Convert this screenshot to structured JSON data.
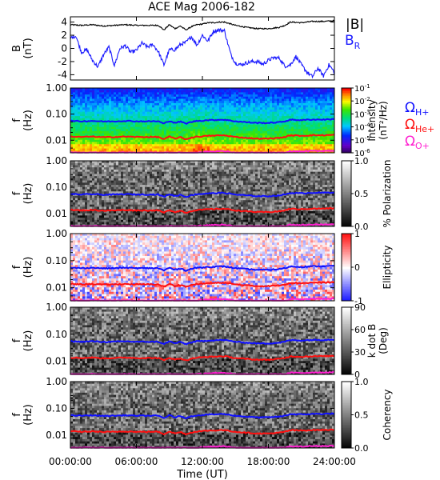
{
  "title": "ACE Mag 2006-182",
  "colors": {
    "total_field": "#000000",
    "radial_field": "#1a1aff",
    "h_gyro": "#1010ff",
    "he_gyro": "#ff1010",
    "o_gyro": "#ff20d0"
  },
  "chart_data": [
    {
      "type": "line",
      "ylabel": "B\n(nT)",
      "ylim": [
        -4.8,
        4.8
      ],
      "yticks": [
        4,
        2,
        0,
        -2,
        -4
      ],
      "ytick_labels": [
        "4",
        "2",
        "0",
        "-2",
        "-4"
      ],
      "x_range_hours": [
        0,
        24
      ],
      "legend": [
        "|B|",
        "B_R"
      ],
      "legend_display": {
        "total": "|B|",
        "radial_main": "B",
        "radial_sub": "R"
      },
      "legend_placement": "right",
      "series": [
        {
          "name": "|B|",
          "x": [
            0,
            1,
            2,
            3,
            4,
            5,
            6,
            7,
            8,
            8.5,
            9,
            9.5,
            10,
            10.5,
            11,
            11.5,
            12,
            12.5,
            13,
            13.5,
            14,
            15,
            16,
            17,
            18,
            19,
            19.5,
            20,
            21,
            22,
            23,
            24
          ],
          "y": [
            3.6,
            3.5,
            3.6,
            3.4,
            3.5,
            3.6,
            3.5,
            3.5,
            3.5,
            2.8,
            3.6,
            3.0,
            3.4,
            2.8,
            3.3,
            3.6,
            3.7,
            3.9,
            3.9,
            4.0,
            4.0,
            3.5,
            3.2,
            3.0,
            3.0,
            3.2,
            3.5,
            4.0,
            3.9,
            4.1,
            4.1,
            4.2
          ]
        },
        {
          "name": "B_R",
          "x": [
            0,
            0.5,
            1,
            1.5,
            2,
            2.5,
            3,
            3.5,
            4,
            4.5,
            5,
            5.5,
            6,
            6.5,
            7,
            7.5,
            8,
            8.5,
            9,
            9.5,
            10,
            10.5,
            11,
            11.5,
            12,
            12.5,
            13,
            13.5,
            14,
            14.3,
            14.6,
            15,
            15.5,
            16,
            16.5,
            17,
            17.5,
            18,
            18.5,
            19,
            19.5,
            20,
            20.5,
            21,
            21.5,
            22,
            22.5,
            23,
            23.5,
            24
          ],
          "y": [
            1.6,
            1.9,
            -0.6,
            -0.2,
            -1.8,
            -2.8,
            -1.0,
            0.2,
            -2.6,
            0.0,
            0.4,
            -0.6,
            -0.3,
            0.8,
            0.2,
            0.6,
            -0.5,
            -2.5,
            -0.2,
            -0.2,
            0.6,
            0.9,
            1.8,
            0.5,
            2.0,
            1.1,
            2.6,
            2.8,
            2.7,
            0.8,
            -1.0,
            -2.2,
            -2.5,
            -2.2,
            -2.0,
            -2.0,
            -2.4,
            -1.8,
            -1.4,
            -1.5,
            -2.7,
            -2.5,
            -1.2,
            -2.5,
            -3.6,
            -4.3,
            -3.0,
            -4.2,
            -2.5,
            -3.6
          ]
        }
      ]
    },
    {
      "type": "heatmap",
      "ylabel": "f\n(Hz)",
      "yscale": "log",
      "ylim": [
        0.0033,
        1.0
      ],
      "yticks": [
        1.0,
        0.1,
        0.01
      ],
      "ytick_labels": [
        "1.00",
        "0.10",
        "0.01"
      ],
      "x_range_hours": [
        0,
        24
      ],
      "colorbar": {
        "label": "Intensity\n(nT²/Hz)",
        "scale": "log",
        "range": [
          1e-06,
          0.1
        ],
        "tick_values": [
          0.1,
          0.01,
          0.001,
          0.0001,
          1e-05,
          1e-06
        ],
        "tick_labels": [
          {
            "base": "10",
            "exp": "-1"
          },
          {
            "base": "10",
            "exp": "-2"
          },
          {
            "base": "10",
            "exp": "-3"
          },
          {
            "base": "10",
            "exp": "-4"
          },
          {
            "base": "10",
            "exp": "-5"
          },
          {
            "base": "10",
            "exp": "-6"
          }
        ],
        "colormap": "rainbow"
      },
      "legend": [
        "Ω_H+",
        "Ω_He+",
        "Ω_O+"
      ],
      "legend_display": [
        {
          "main": "Ω",
          "sub": "H+"
        },
        {
          "main": "Ω",
          "sub": "He+"
        },
        {
          "main": "Ω",
          "sub": "O+"
        }
      ],
      "legend_placement": "right"
    },
    {
      "type": "heatmap",
      "ylabel": "f\n(Hz)",
      "yscale": "log",
      "ylim": [
        0.0033,
        1.0
      ],
      "yticks": [
        1.0,
        0.1,
        0.01
      ],
      "ytick_labels": [
        "1.00",
        "0.10",
        "0.01"
      ],
      "x_range_hours": [
        0,
        24
      ],
      "colorbar": {
        "label": "% Polarization",
        "scale": "linear",
        "range": [
          0,
          1
        ],
        "tick_values": [
          1.0,
          0.5,
          0.0
        ],
        "tick_labels": [
          "1.0",
          "0.5",
          "0.0"
        ],
        "colormap": "gray"
      }
    },
    {
      "type": "heatmap",
      "ylabel": "f\n(Hz)",
      "yscale": "log",
      "ylim": [
        0.0033,
        1.0
      ],
      "yticks": [
        1.0,
        0.1,
        0.01
      ],
      "ytick_labels": [
        "1.00",
        "0.10",
        "0.01"
      ],
      "x_range_hours": [
        0,
        24
      ],
      "colorbar": {
        "label": "Ellipticity",
        "scale": "linear",
        "range": [
          -1,
          1
        ],
        "tick_values": [
          1,
          0,
          -1
        ],
        "tick_labels": [
          "1",
          "0",
          "-1"
        ],
        "colormap": "blue-white-red"
      }
    },
    {
      "type": "heatmap",
      "ylabel": "f\n(Hz)",
      "yscale": "log",
      "ylim": [
        0.0033,
        1.0
      ],
      "yticks": [
        1.0,
        0.1,
        0.01
      ],
      "ytick_labels": [
        "1.00",
        "0.10",
        "0.01"
      ],
      "x_range_hours": [
        0,
        24
      ],
      "colorbar": {
        "label": "k dot B\n(Deg)",
        "scale": "linear",
        "range": [
          0,
          90
        ],
        "tick_values": [
          90,
          60,
          30,
          0
        ],
        "tick_labels": [
          "90",
          "60",
          "30",
          "0"
        ],
        "colormap": "gray"
      }
    },
    {
      "type": "heatmap",
      "ylabel": "f\n(Hz)",
      "yscale": "log",
      "ylim": [
        0.0033,
        1.0
      ],
      "yticks": [
        1.0,
        0.1,
        0.01
      ],
      "ytick_labels": [
        "1.00",
        "0.10",
        "0.01"
      ],
      "x_range_hours": [
        0,
        24
      ],
      "colorbar": {
        "label": "Coherency",
        "scale": "linear",
        "range": [
          0,
          1
        ],
        "tick_values": [
          1.0,
          0.5,
          0.0
        ],
        "tick_labels": [
          "1.0",
          "0.5",
          "0.0"
        ],
        "colormap": "gray"
      }
    }
  ],
  "gyrofrequency_lines": {
    "x": [
      0,
      1,
      2,
      3,
      4,
      5,
      6,
      7,
      8,
      8.5,
      9,
      9.5,
      10,
      10.5,
      11,
      11.5,
      12,
      12.5,
      13,
      13.5,
      14,
      15,
      16,
      17,
      18,
      19,
      19.5,
      20,
      21,
      22,
      23,
      24
    ],
    "H+": [
      0.055,
      0.053,
      0.055,
      0.052,
      0.053,
      0.055,
      0.053,
      0.053,
      0.053,
      0.043,
      0.055,
      0.046,
      0.052,
      0.043,
      0.05,
      0.055,
      0.056,
      0.059,
      0.059,
      0.061,
      0.061,
      0.053,
      0.049,
      0.046,
      0.046,
      0.049,
      0.053,
      0.061,
      0.059,
      0.062,
      0.062,
      0.064
    ],
    "He+": [
      0.0138,
      0.0133,
      0.0138,
      0.013,
      0.0133,
      0.0138,
      0.0133,
      0.0133,
      0.0133,
      0.0108,
      0.0138,
      0.0115,
      0.013,
      0.0108,
      0.0125,
      0.0138,
      0.014,
      0.0148,
      0.0148,
      0.0153,
      0.0153,
      0.0133,
      0.0123,
      0.0115,
      0.0115,
      0.0123,
      0.0133,
      0.0153,
      0.0148,
      0.0155,
      0.0155,
      0.016
    ],
    "O+": [
      0.0034,
      0.0033,
      0.0034,
      0.0033,
      0.0033,
      0.0034,
      0.0033,
      0.0033,
      0.0033,
      0.0033,
      0.0034,
      0.0033,
      0.0033,
      0.0033,
      0.0033,
      0.0034,
      0.0035,
      0.0037,
      0.0037,
      0.0038,
      0.0038,
      0.0033,
      0.0033,
      0.0033,
      0.0033,
      0.0033,
      0.0033,
      0.0038,
      0.0037,
      0.0039,
      0.0039,
      0.004
    ]
  },
  "x_axis": {
    "label": "Time (UT)",
    "ticks_hours": [
      0,
      6,
      12,
      18,
      24
    ],
    "tick_labels": [
      "00:00:00",
      "06:00:00",
      "12:00:00",
      "18:00:00",
      "24:00:00"
    ]
  }
}
